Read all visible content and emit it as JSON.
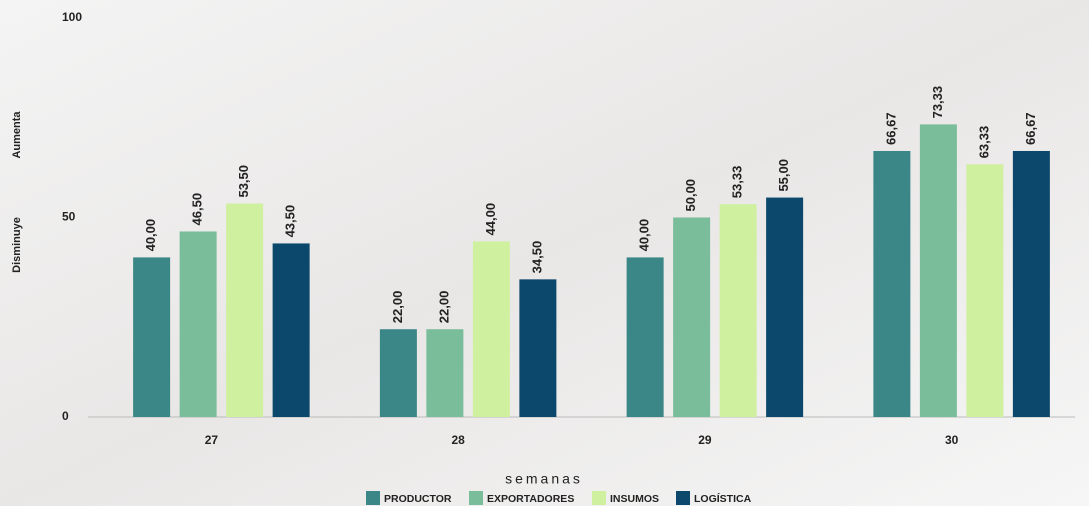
{
  "chart_data": {
    "type": "bar",
    "categories": [
      "27",
      "28",
      "29",
      "30"
    ],
    "series": [
      {
        "name": "PRODUCTOR",
        "color": "#3b8686",
        "values": [
          40,
          22,
          40,
          66.67
        ],
        "value_labels": [
          "40,00",
          "22,00",
          "40,00",
          "66,67"
        ]
      },
      {
        "name": "EXPORTADORES",
        "color": "#79bd9a",
        "values": [
          46.5,
          22,
          50,
          73.33
        ],
        "value_labels": [
          "46,50",
          "22,00",
          "50,00",
          "73,33"
        ]
      },
      {
        "name": "INSUMOS",
        "color": "#cff09e",
        "values": [
          53.5,
          44,
          53.33,
          63.33
        ],
        "value_labels": [
          "53,50",
          "44,00",
          "53,33",
          "63,33"
        ]
      },
      {
        "name": "LOGÍSTICA",
        "color": "#0b486b",
        "values": [
          43.5,
          34.5,
          55,
          66.67
        ],
        "value_labels": [
          "43,50",
          "34,50",
          "55,00",
          "66,67"
        ]
      }
    ],
    "xlabel": "semanas",
    "ylabel_low": "Disminuye",
    "ylabel_high": "Aumenta",
    "ylim": [
      0,
      100
    ],
    "yticks": [
      0,
      50,
      100
    ],
    "grid": false,
    "legend": "bottom"
  }
}
